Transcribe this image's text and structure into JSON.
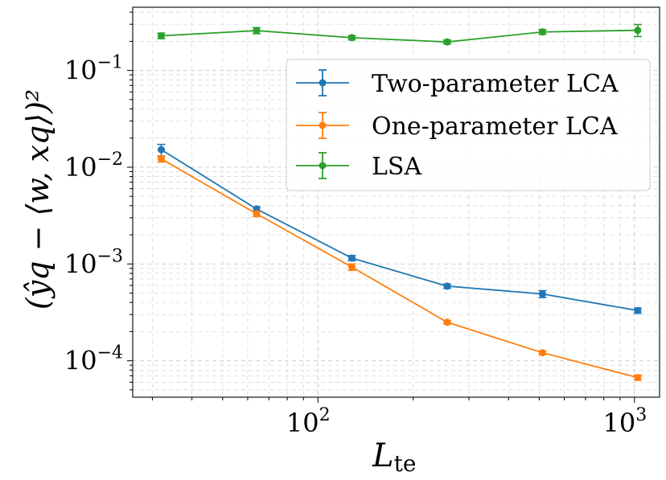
{
  "chart_data": {
    "type": "line",
    "xscale": "log",
    "yscale": "log",
    "xlim": [
      26,
      1200
    ],
    "ylim": [
      4.2e-05,
      0.45
    ],
    "grid": true,
    "legend_position": "upper-right",
    "xlabel_main": "L",
    "xlabel_sub": "te",
    "ylabel": "(ŷq − ⟨w, xq⟩)²",
    "x": [
      32,
      64,
      128,
      256,
      512,
      1024
    ],
    "xtick_labels": [
      {
        "base": "10",
        "exp": "2",
        "value": 100
      },
      {
        "base": "10",
        "exp": "3",
        "value": 1000
      }
    ],
    "ytick_labels": [
      {
        "base": "10",
        "exp": "−1",
        "value": 0.1
      },
      {
        "base": "10",
        "exp": "−2",
        "value": 0.01
      },
      {
        "base": "10",
        "exp": "−3",
        "value": 0.001
      },
      {
        "base": "10",
        "exp": "−4",
        "value": 0.0001
      }
    ],
    "series": [
      {
        "name": "Two-parameter LCA",
        "color": "#1f77b4",
        "values": [
          0.0152,
          0.0037,
          0.00115,
          0.00059,
          0.00049,
          0.00033
        ],
        "err_low": [
          0.013,
          0.0035,
          0.00108,
          0.00056,
          0.00045,
          0.00031
        ],
        "err_high": [
          0.0172,
          0.0039,
          0.00122,
          0.00062,
          0.00053,
          0.00035
        ]
      },
      {
        "name": "One-parameter LCA",
        "color": "#ff7f0e",
        "values": [
          0.0122,
          0.0033,
          0.00093,
          0.00025,
          0.000121,
          6.7e-05
        ],
        "err_low": [
          0.0113,
          0.0031,
          0.00086,
          0.00024,
          0.000116,
          6.3e-05
        ],
        "err_high": [
          0.0131,
          0.0035,
          0.001,
          0.00026,
          0.000126,
          7.1e-05
        ]
      },
      {
        "name": "LSA",
        "color": "#2ca02c",
        "values": [
          0.228,
          0.258,
          0.218,
          0.197,
          0.25,
          0.26
        ],
        "err_low": [
          0.213,
          0.24,
          0.207,
          0.188,
          0.236,
          0.224
        ],
        "err_high": [
          0.243,
          0.277,
          0.229,
          0.206,
          0.265,
          0.298
        ]
      }
    ]
  }
}
